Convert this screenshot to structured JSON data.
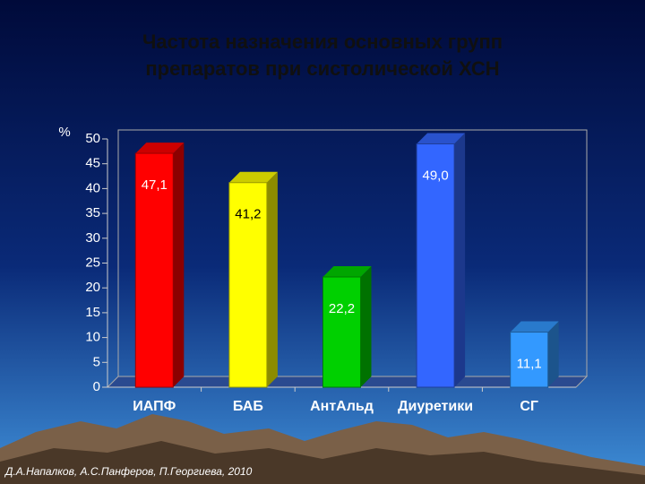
{
  "chart_data": {
    "type": "bar3d",
    "title": [
      "Частота назначения основных групп",
      "препаратов при систолической ХСН"
    ],
    "y_label": "%",
    "categories": [
      "ИАПФ",
      "БАБ",
      "АнтАльд",
      "Диуретики",
      "СГ"
    ],
    "values": [
      47.1,
      41.2,
      22.2,
      49.0,
      11.1
    ],
    "value_labels": [
      "47,1",
      "41,2",
      "22,2",
      "49,0",
      "11,1"
    ],
    "colors": [
      "#ff0000",
      "#ffff00",
      "#00d000",
      "#3366ff",
      "#3399ff"
    ],
    "ylim": [
      0,
      50
    ],
    "yticks": [
      0,
      5,
      10,
      15,
      20,
      25,
      30,
      35,
      40,
      45,
      50
    ],
    "footer": "Д.А.Напалков, А.С.Панферов, П.Георгиева, 2010"
  }
}
